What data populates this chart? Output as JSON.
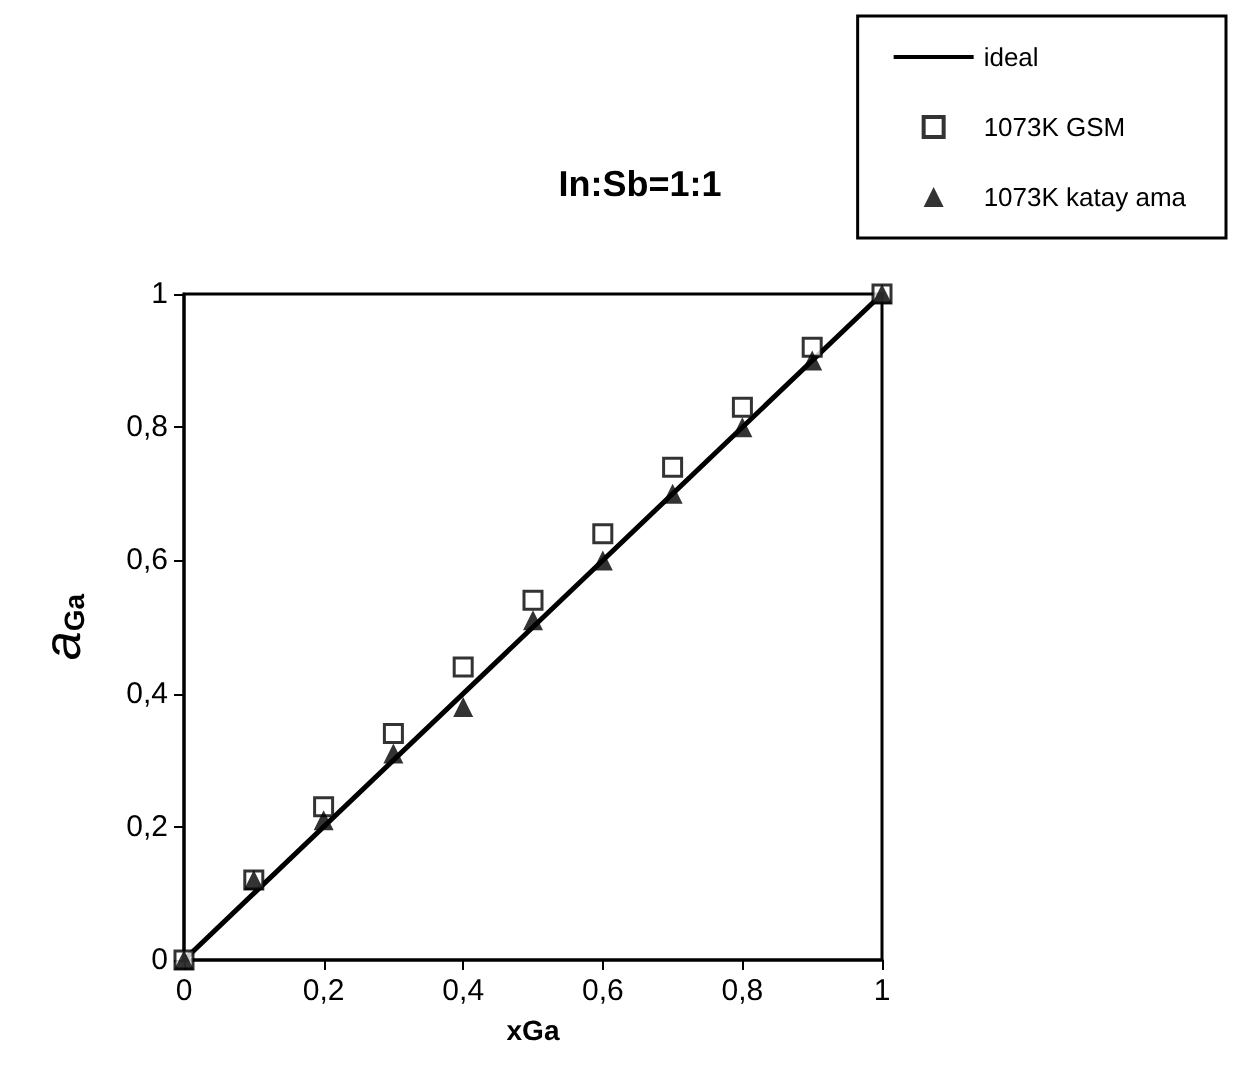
{
  "chart_data": {
    "type": "scatter",
    "title": "In:Sb=1:1",
    "xlabel": "xGa",
    "ylabel": "a$_{Ga}$",
    "xlim": [
      0,
      1
    ],
    "ylim": [
      0,
      1
    ],
    "xticks": [
      0,
      {
        "value": 0.2,
        "label": "0,2"
      },
      {
        "value": 0.4,
        "label": "0,4"
      },
      {
        "value": 0.6,
        "label": "0,6"
      },
      {
        "value": 0.8,
        "label": "0,8"
      },
      1
    ],
    "yticks": [
      0,
      {
        "value": 0.2,
        "label": "0,2"
      },
      {
        "value": 0.4,
        "label": "0,4"
      },
      {
        "value": 0.6,
        "label": "0,6"
      },
      {
        "value": 0.8,
        "label": "0,8"
      },
      1
    ],
    "grid": false,
    "legend": "top right",
    "series": [
      {
        "name": "ideal",
        "type": "line",
        "marker": "none",
        "line_style": "solid",
        "color": "#000000",
        "x": [
          0,
          1
        ],
        "values": [
          0,
          1
        ]
      },
      {
        "name": "1073K GSM",
        "type": "scatter",
        "marker": "square",
        "color": "#000000",
        "x": [
          0,
          0.1,
          0.2,
          0.3,
          0.4,
          0.5,
          0.6,
          0.7,
          0.8,
          0.9,
          1
        ],
        "values": [
          0,
          0.12,
          0.23,
          0.34,
          0.44,
          0.54,
          0.64,
          0.74,
          0.83,
          0.92,
          1
        ]
      },
      {
        "name": "1073K katay ama",
        "type": "scatter",
        "marker": "triangle",
        "color": "#000000",
        "x": [
          0,
          0.1,
          0.2,
          0.3,
          0.4,
          0.5,
          0.6,
          0.7,
          0.8,
          0.9,
          1
        ],
        "values": [
          0,
          0.12,
          0.21,
          0.31,
          0.38,
          0.51,
          0.6,
          0.7,
          0.8,
          0.9,
          1
        ]
      }
    ]
  }
}
